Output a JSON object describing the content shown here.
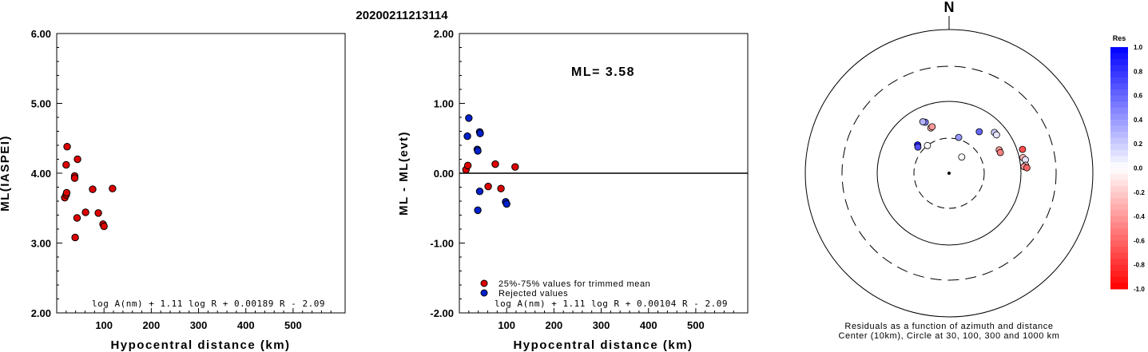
{
  "title": "20200211213114",
  "chart_data": [
    {
      "type": "scatter",
      "name": "ml_vs_distance",
      "xlabel": "Hypocentral distance (km)",
      "ylabel": "ML(IASPEI)",
      "xlim": [
        0,
        610
      ],
      "ylim": [
        2.0,
        6.0
      ],
      "xticks": [
        "100",
        "200",
        "300",
        "400",
        "500"
      ],
      "yticks": [
        "2.00",
        "3.00",
        "4.00",
        "5.00",
        "6.00"
      ],
      "formula": "log A(nm) + 1.11 log R + 0.00189 R - 2.09",
      "points": [
        {
          "x": 17,
          "y": 3.65
        },
        {
          "x": 20,
          "y": 3.69
        },
        {
          "x": 21,
          "y": 3.72
        },
        {
          "x": 20,
          "y": 4.12
        },
        {
          "x": 22,
          "y": 4.38
        },
        {
          "x": 38,
          "y": 3.96
        },
        {
          "x": 38,
          "y": 3.93
        },
        {
          "x": 44,
          "y": 4.2
        },
        {
          "x": 43,
          "y": 3.36
        },
        {
          "x": 39,
          "y": 3.08
        },
        {
          "x": 61,
          "y": 3.44
        },
        {
          "x": 76,
          "y": 3.77
        },
        {
          "x": 88,
          "y": 3.43
        },
        {
          "x": 98,
          "y": 3.27
        },
        {
          "x": 100,
          "y": 3.24
        },
        {
          "x": 118,
          "y": 3.78
        }
      ]
    },
    {
      "type": "scatter",
      "name": "residual_vs_distance",
      "xlabel": "Hypocentral distance (km)",
      "ylabel": "ML - ML(evt)",
      "xlim": [
        0,
        610
      ],
      "ylim": [
        -2.0,
        2.0
      ],
      "xticks": [
        "100",
        "200",
        "300",
        "400",
        "500"
      ],
      "yticks": [
        "-2.00",
        "-1.00",
        "0.00",
        "1.00",
        "2.00"
      ],
      "annotation": "ML= 3.58",
      "formula": "log A(nm) + 1.11 log R + 0.00104 R - 2.09",
      "legend": [
        {
          "label": "25%-75% values for trimmed mean",
          "color": "#dd0000"
        },
        {
          "label": "Rejected values",
          "color": "#0020cc"
        }
      ],
      "series": [
        {
          "name": "25%-75% values for trimmed mean",
          "color": "#dd0000",
          "points": [
            {
              "x": 14,
              "y": 0.05
            },
            {
              "x": 18,
              "y": 0.11
            },
            {
              "x": 61,
              "y": -0.19
            },
            {
              "x": 76,
              "y": 0.13
            },
            {
              "x": 88,
              "y": -0.22
            },
            {
              "x": 118,
              "y": 0.09
            }
          ]
        },
        {
          "name": "Rejected values",
          "color": "#0020cc",
          "points": [
            {
              "x": 17,
              "y": 0.53
            },
            {
              "x": 20,
              "y": 0.79
            },
            {
              "x": 38,
              "y": 0.34
            },
            {
              "x": 39,
              "y": 0.32
            },
            {
              "x": 43,
              "y": 0.59
            },
            {
              "x": 44,
              "y": 0.57
            },
            {
              "x": 43,
              "y": -0.26
            },
            {
              "x": 39,
              "y": -0.53
            },
            {
              "x": 98,
              "y": -0.41
            },
            {
              "x": 100,
              "y": -0.44
            }
          ]
        }
      ]
    },
    {
      "type": "scatter",
      "name": "azimuth_map",
      "north_label": "N",
      "caption_line1": "Residuals as a function of azimuth and distance",
      "caption_line2": "Center (10km), Circle at 30, 100, 300 and 1000 km",
      "colorbar_title": "Res",
      "colorbar_ticks": [
        "1.0",
        "0.8",
        "0.6",
        "0.4",
        "0.2",
        "0.0",
        "-0.2",
        "-0.4",
        "-0.6",
        "-0.8",
        "-1.0"
      ],
      "stations": [
        {
          "az": 335,
          "dist": 60,
          "res": 0.5
        },
        {
          "az": 333,
          "dist": 63,
          "res": 0.3
        },
        {
          "az": 312,
          "dist": 38,
          "res": 0.9
        },
        {
          "az": 310,
          "dist": 36,
          "res": 0.7
        },
        {
          "az": 322,
          "dist": 30,
          "res": 0.0
        },
        {
          "az": 338,
          "dist": 47,
          "res": -0.3
        },
        {
          "az": 340,
          "dist": 48,
          "res": -0.4
        },
        {
          "az": 15,
          "dist": 32,
          "res": 0.4
        },
        {
          "az": 38,
          "dist": 19,
          "res": 0.0
        },
        {
          "az": 36,
          "dist": 51,
          "res": 0.6
        },
        {
          "az": 48,
          "dist": 70,
          "res": 0.2
        },
        {
          "az": 51,
          "dist": 70,
          "res": 0.1
        },
        {
          "az": 65,
          "dist": 58,
          "res": -0.4
        },
        {
          "az": 68,
          "dist": 58,
          "res": -0.5
        },
        {
          "az": 72,
          "dist": 118,
          "res": -0.7
        },
        {
          "az": 78,
          "dist": 112,
          "res": -0.3
        },
        {
          "az": 80,
          "dist": 119,
          "res": 0.1
        },
        {
          "az": 84,
          "dist": 117,
          "res": -0.2
        },
        {
          "az": 85,
          "dist": 111,
          "res": -0.4
        },
        {
          "az": 86,
          "dist": 121,
          "res": -0.6
        }
      ]
    }
  ]
}
